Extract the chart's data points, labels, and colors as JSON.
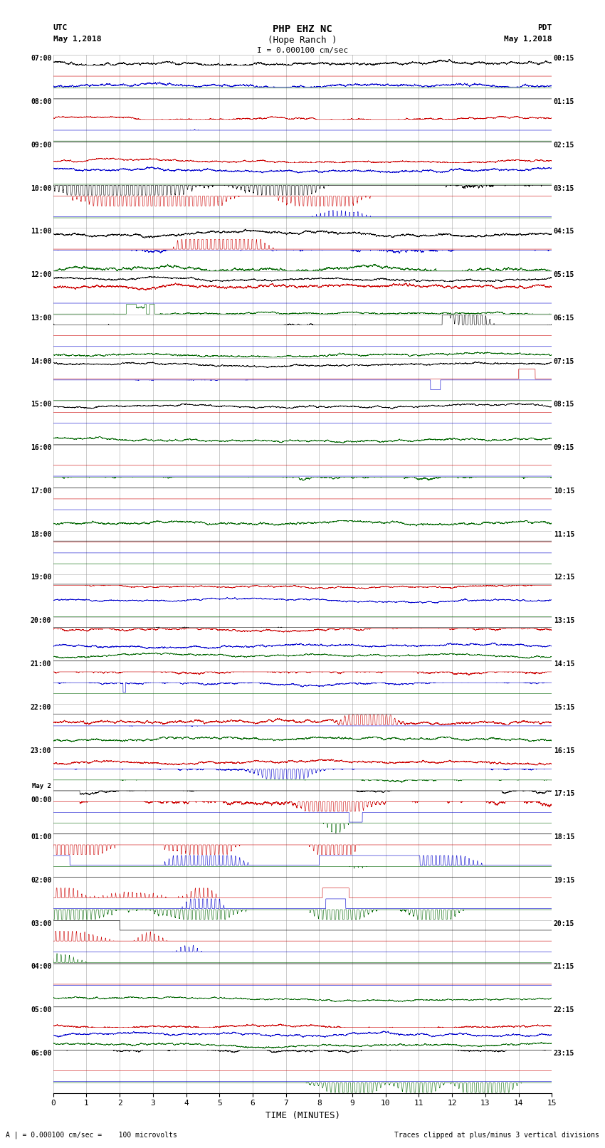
{
  "title_line1": "PHP EHZ NC",
  "title_line2": "(Hope Ranch )",
  "scale_text": "I = 0.000100 cm/sec",
  "utc_label": "UTC",
  "utc_date": "May 1,2018",
  "pdt_label": "PDT",
  "pdt_date": "May 1,2018",
  "xlabel": "TIME (MINUTES)",
  "footer_left": "A | = 0.000100 cm/sec =    100 microvolts",
  "footer_right": "Traces clipped at plus/minus 3 vertical divisions",
  "num_rows": 24,
  "trace_colors": [
    "#000000",
    "#cc0000",
    "#0000cc",
    "#006600"
  ],
  "background_color": "#ffffff",
  "grid_color": "#999999",
  "figsize": [
    8.5,
    16.13
  ],
  "dpi": 100,
  "xlim": [
    0,
    15
  ],
  "left_labels": [
    "07:00",
    "08:00",
    "09:00",
    "10:00",
    "11:00",
    "12:00",
    "13:00",
    "14:00",
    "15:00",
    "16:00",
    "17:00",
    "18:00",
    "19:00",
    "20:00",
    "21:00",
    "22:00",
    "23:00",
    "May 2\n00:00",
    "01:00",
    "02:00",
    "03:00",
    "04:00",
    "05:00",
    "06:00"
  ],
  "right_labels": [
    "00:15",
    "01:15",
    "02:15",
    "03:15",
    "04:15",
    "05:15",
    "06:15",
    "07:15",
    "08:15",
    "09:15",
    "10:15",
    "11:15",
    "12:15",
    "13:15",
    "14:15",
    "15:15",
    "16:15",
    "17:15",
    "18:15",
    "19:15",
    "20:15",
    "21:15",
    "22:15",
    "23:15"
  ]
}
